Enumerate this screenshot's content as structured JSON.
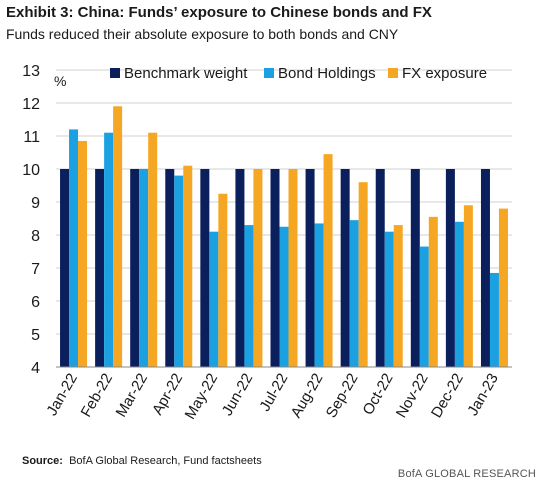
{
  "header": {
    "title": "Exhibit 3: China: Funds’ exposure to Chinese bonds and FX",
    "subtitle": "Funds reduced their absolute exposure to both bonds and CNY"
  },
  "source": {
    "label": "Source:",
    "text": "BofA Global Research, Fund factsheets"
  },
  "footer": {
    "brand": "BofA GLOBAL RESEARCH"
  },
  "chart_data": {
    "type": "bar",
    "categories": [
      "Jan-22",
      "Feb-22",
      "Mar-22",
      "Apr-22",
      "May-22",
      "Jun-22",
      "Jul-22",
      "Aug-22",
      "Sep-22",
      "Oct-22",
      "Nov-22",
      "Dec-22",
      "Jan-23"
    ],
    "series": [
      {
        "name": "Benchmark weight",
        "color": "#0a1f5c",
        "values": [
          10,
          10,
          10,
          10,
          10,
          10,
          10,
          10,
          10,
          10,
          10,
          10,
          10
        ]
      },
      {
        "name": "Bond Holdings",
        "color": "#1ba1e2",
        "values": [
          11.2,
          11.1,
          10.0,
          9.8,
          8.1,
          8.3,
          8.25,
          8.35,
          8.45,
          8.1,
          7.65,
          8.4,
          6.85
        ]
      },
      {
        "name": "FX exposure",
        "color": "#f5a623",
        "values": [
          10.85,
          11.9,
          11.1,
          10.1,
          9.25,
          10.0,
          10.0,
          10.45,
          9.6,
          8.3,
          8.55,
          8.9,
          8.8
        ]
      }
    ],
    "unit_label": "%",
    "ylim": [
      4,
      13
    ],
    "yticks": [
      4,
      5,
      6,
      7,
      8,
      9,
      10,
      11,
      12,
      13
    ],
    "grid": true,
    "legend": "top"
  }
}
